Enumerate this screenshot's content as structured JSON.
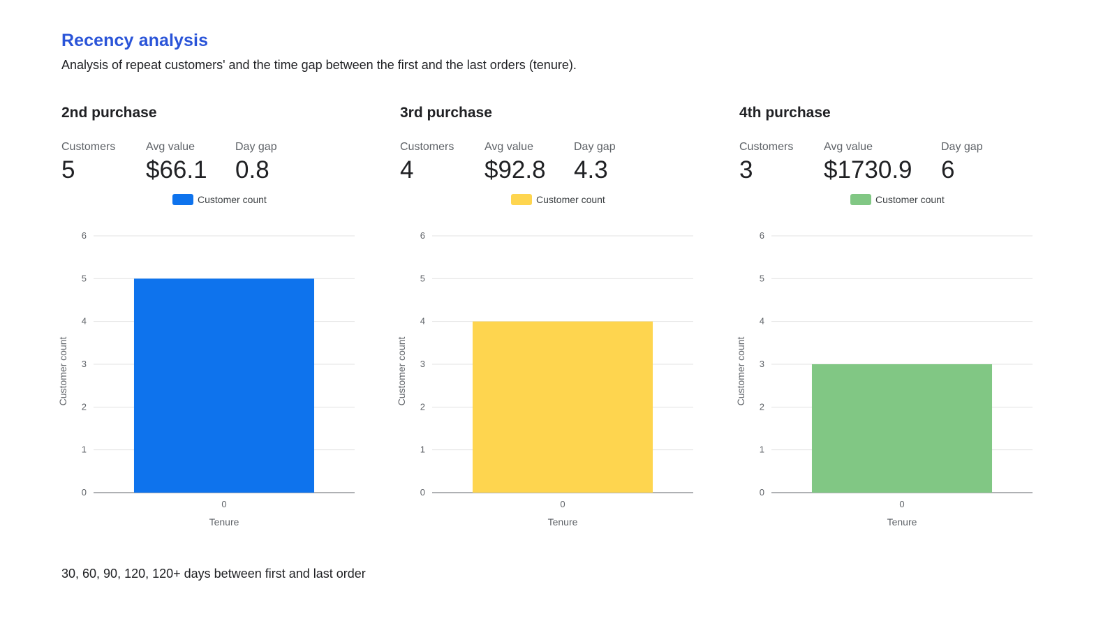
{
  "header": {
    "title": "Recency analysis",
    "subtitle": "Analysis of repeat customers' and the time gap between the first and the last orders (tenure)."
  },
  "panels": [
    {
      "title": "2nd purchase",
      "metrics": [
        {
          "label": "Customers",
          "value": "5"
        },
        {
          "label": "Avg value",
          "value": "$66.1"
        },
        {
          "label": "Day gap",
          "value": "0.8"
        }
      ]
    },
    {
      "title": "3rd purchase",
      "metrics": [
        {
          "label": "Customers",
          "value": "4"
        },
        {
          "label": "Avg value",
          "value": "$92.8"
        },
        {
          "label": "Day gap",
          "value": "4.3"
        }
      ]
    },
    {
      "title": "4th purchase",
      "metrics": [
        {
          "label": "Customers",
          "value": "3"
        },
        {
          "label": "Avg value",
          "value": "$1730.9"
        },
        {
          "label": "Day gap",
          "value": "6"
        }
      ]
    }
  ],
  "chart_data": [
    {
      "type": "bar",
      "categories": [
        "0"
      ],
      "series": [
        {
          "name": "Customer count",
          "values": [
            5
          ],
          "color": "#0e73ed"
        }
      ],
      "xlabel": "Tenure",
      "ylabel": "Customer count",
      "ylim": [
        0,
        6
      ],
      "yticks": [
        0,
        1,
        2,
        3,
        4,
        5,
        6
      ],
      "grid": true,
      "legend": "top"
    },
    {
      "type": "bar",
      "categories": [
        "0"
      ],
      "series": [
        {
          "name": "Customer count",
          "values": [
            4
          ],
          "color": "#fed54f"
        }
      ],
      "xlabel": "Tenure",
      "ylabel": "Customer count",
      "ylim": [
        0,
        6
      ],
      "yticks": [
        0,
        1,
        2,
        3,
        4,
        5,
        6
      ],
      "grid": true,
      "legend": "top"
    },
    {
      "type": "bar",
      "categories": [
        "0"
      ],
      "series": [
        {
          "name": "Customer count",
          "values": [
            3
          ],
          "color": "#81c784"
        }
      ],
      "xlabel": "Tenure",
      "ylabel": "Customer count",
      "ylim": [
        0,
        6
      ],
      "yticks": [
        0,
        1,
        2,
        3,
        4,
        5,
        6
      ],
      "grid": true,
      "legend": "top"
    }
  ],
  "footnote": "30, 60, 90, 120, 120+ days between first and last order"
}
